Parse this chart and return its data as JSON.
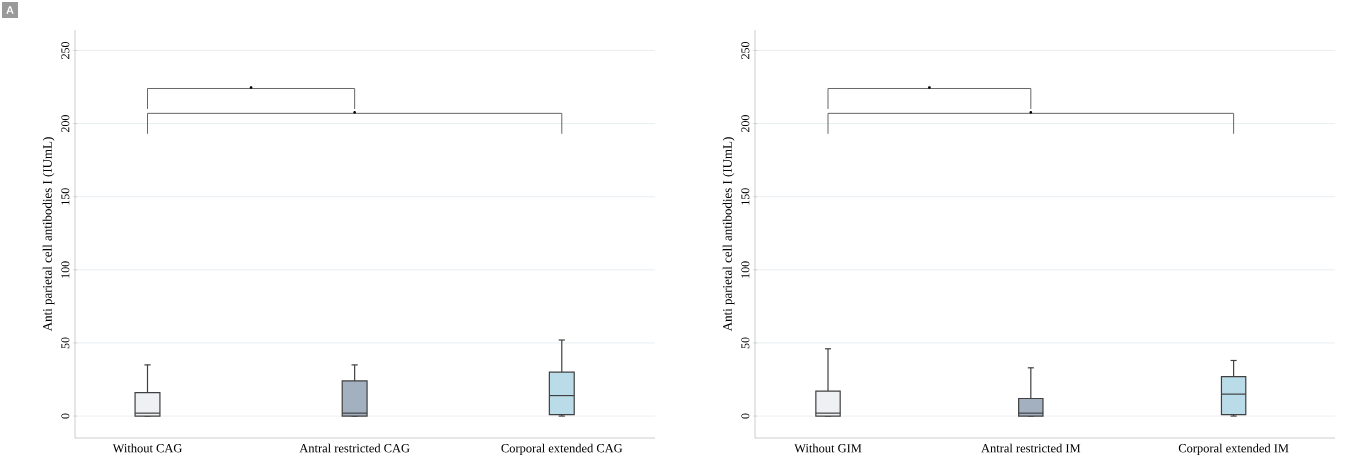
{
  "chart_data": [
    {
      "type": "box",
      "title": "A",
      "ylabel": "Anti parietal cell antibodies I (IUmL)",
      "categories": [
        "Without CAG",
        "Antral restricted CAG",
        "Corporal extended CAG"
      ],
      "colors": [
        "#eef0f4",
        "#a3b0bf",
        "#b9dce8"
      ],
      "boxes": [
        {
          "low": 0,
          "q1": 0,
          "median": 2,
          "q3": 16,
          "high": 35
        },
        {
          "low": 0,
          "q1": 0,
          "median": 2,
          "q3": 24,
          "high": 35
        },
        {
          "low": 0,
          "q1": 1,
          "median": 14,
          "q3": 30,
          "high": 52
        }
      ],
      "ylim": [
        -15,
        264
      ],
      "yticks": [
        0,
        50,
        100,
        150,
        200,
        250
      ],
      "grid": "y",
      "annotations": [
        "•",
        "•"
      ]
    },
    {
      "type": "box",
      "ylabel": "Anti parietal cell antibodies I (IUmL)",
      "categories": [
        "Without GIM",
        "Antral restricted IM",
        "Corporal extended IM"
      ],
      "colors": [
        "#eef0f4",
        "#a3b0bf",
        "#b9dce8"
      ],
      "boxes": [
        {
          "low": 0,
          "q1": 0,
          "median": 2,
          "q3": 17,
          "high": 46
        },
        {
          "low": 0,
          "q1": 0,
          "median": 2,
          "q3": 12,
          "high": 33
        },
        {
          "low": 0,
          "q1": 1,
          "median": 15,
          "q3": 27,
          "high": 38
        }
      ],
      "ylim": [
        -15,
        264
      ],
      "yticks": [
        0,
        50,
        100,
        150,
        200,
        250
      ],
      "grid": "y",
      "annotations": [
        "•",
        "•"
      ]
    }
  ]
}
